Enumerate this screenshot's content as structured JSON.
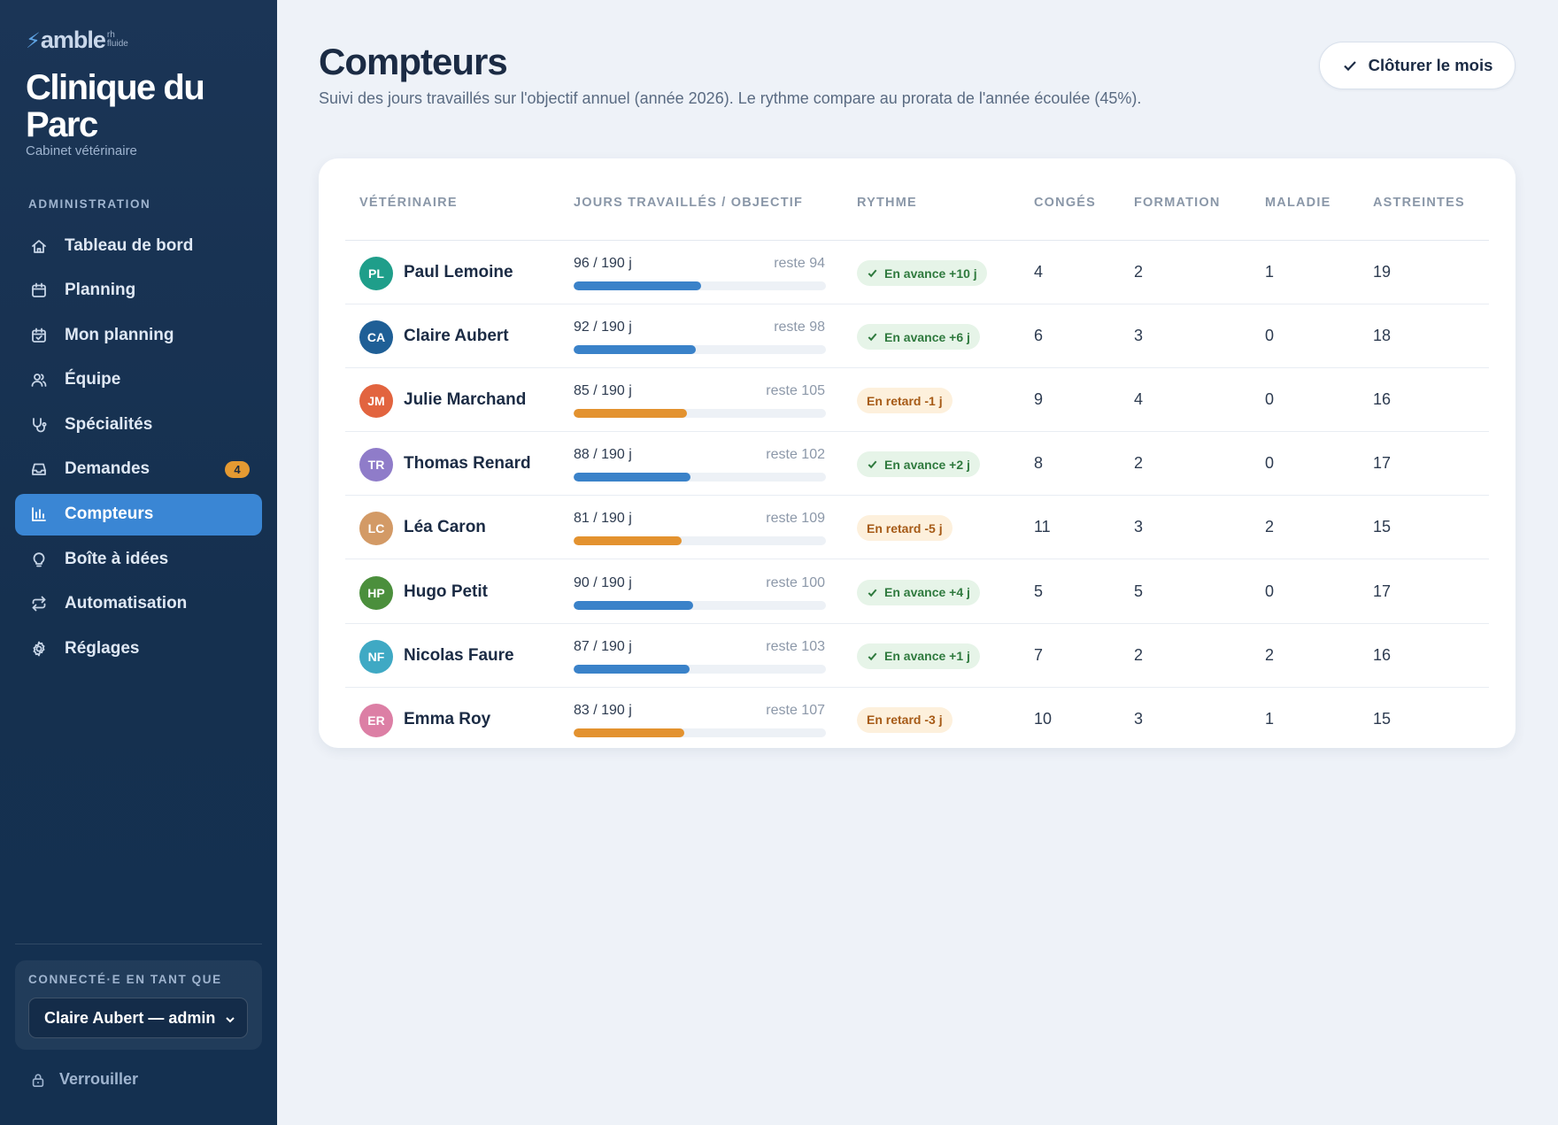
{
  "brand": {
    "logo_text": "amble",
    "logo_sub_top": "rh",
    "logo_sub_bottom": "fluide"
  },
  "clinic": {
    "name": "Clinique du Parc",
    "subtitle": "Cabinet vétérinaire"
  },
  "sidebar": {
    "section_label": "ADMINISTRATION",
    "items": [
      {
        "label": "Tableau de bord",
        "icon": "home-icon"
      },
      {
        "label": "Planning",
        "icon": "calendar-icon"
      },
      {
        "label": "Mon planning",
        "icon": "calendar-check-icon"
      },
      {
        "label": "Équipe",
        "icon": "users-icon"
      },
      {
        "label": "Spécialités",
        "icon": "stethoscope-icon"
      },
      {
        "label": "Demandes",
        "icon": "inbox-icon",
        "badge": "4"
      },
      {
        "label": "Compteurs",
        "icon": "bar-chart-icon",
        "active": true
      },
      {
        "label": "Boîte à idées",
        "icon": "lightbulb-icon"
      },
      {
        "label": "Automatisation",
        "icon": "repeat-icon"
      },
      {
        "label": "Réglages",
        "icon": "gear-icon"
      }
    ],
    "user_box_label": "CONNECTÉ·E EN TANT QUE",
    "user_select_value": "Claire Aubert — admin",
    "lock_label": "Verrouiller"
  },
  "header": {
    "title": "Compteurs",
    "subtitle": "Suivi des jours travaillés sur l'objectif annuel (année 2026). Le rythme compare au prorata de l'année écoulée (45%).",
    "close_month_label": "Clôturer le mois"
  },
  "table": {
    "columns": [
      "VÉTÉRINAIRE",
      "JOURS TRAVAILLÉS / OBJECTIF",
      "RYTHME",
      "CONGÉS",
      "FORMATION",
      "MALADIE",
      "ASTREINTES"
    ],
    "rows": [
      {
        "initials": "PL",
        "name": "Paul Lemoine",
        "avatar_color": "#1f9e8a",
        "days": "96 / 190 j",
        "worked": 96,
        "objective": 190,
        "remaining": "reste 94",
        "status": "ahead",
        "pace": "En avance +10 j",
        "conges": "4",
        "formation": "2",
        "maladie": "1",
        "astreintes": "19"
      },
      {
        "initials": "CA",
        "name": "Claire Aubert",
        "avatar_color": "#1f5f96",
        "days": "92 / 190 j",
        "worked": 92,
        "objective": 190,
        "remaining": "reste 98",
        "status": "ahead",
        "pace": "En avance +6 j",
        "conges": "6",
        "formation": "3",
        "maladie": "0",
        "astreintes": "18"
      },
      {
        "initials": "JM",
        "name": "Julie Marchand",
        "avatar_color": "#e2643f",
        "days": "85 / 190 j",
        "worked": 85,
        "objective": 190,
        "remaining": "reste 105",
        "status": "behind",
        "pace": "En retard -1 j",
        "conges": "9",
        "formation": "4",
        "maladie": "0",
        "astreintes": "16"
      },
      {
        "initials": "TR",
        "name": "Thomas Renard",
        "avatar_color": "#8f7cc9",
        "days": "88 / 190 j",
        "worked": 88,
        "objective": 190,
        "remaining": "reste 102",
        "status": "ahead",
        "pace": "En avance +2 j",
        "conges": "8",
        "formation": "2",
        "maladie": "0",
        "astreintes": "17"
      },
      {
        "initials": "LC",
        "name": "Léa Caron",
        "avatar_color": "#d39a66",
        "days": "81 / 190 j",
        "worked": 81,
        "objective": 190,
        "remaining": "reste 109",
        "status": "behind",
        "pace": "En retard -5 j",
        "conges": "11",
        "formation": "3",
        "maladie": "2",
        "astreintes": "15"
      },
      {
        "initials": "HP",
        "name": "Hugo Petit",
        "avatar_color": "#4b8f3c",
        "days": "90 / 190 j",
        "worked": 90,
        "objective": 190,
        "remaining": "reste 100",
        "status": "ahead",
        "pace": "En avance +4 j",
        "conges": "5",
        "formation": "5",
        "maladie": "0",
        "astreintes": "17"
      },
      {
        "initials": "NF",
        "name": "Nicolas Faure",
        "avatar_color": "#3fa9c4",
        "days": "87 / 190 j",
        "worked": 87,
        "objective": 190,
        "remaining": "reste 103",
        "status": "ahead",
        "pace": "En avance +1 j",
        "conges": "7",
        "formation": "2",
        "maladie": "2",
        "astreintes": "16"
      },
      {
        "initials": "ER",
        "name": "Emma Roy",
        "avatar_color": "#dc7fa5",
        "days": "83 / 190 j",
        "worked": 83,
        "objective": 190,
        "remaining": "reste 107",
        "status": "behind",
        "pace": "En retard -3 j",
        "conges": "10",
        "formation": "3",
        "maladie": "1",
        "astreintes": "15"
      }
    ]
  },
  "colors": {
    "accent": "#3a86d4",
    "bar_ahead": "#3a82c9",
    "bar_behind": "#e3922f",
    "pill_ahead_bg": "#e6f4e8",
    "pill_ahead_text": "#2f7a3e",
    "pill_behind_bg": "#fdf0dc",
    "pill_behind_text": "#a65a16"
  }
}
